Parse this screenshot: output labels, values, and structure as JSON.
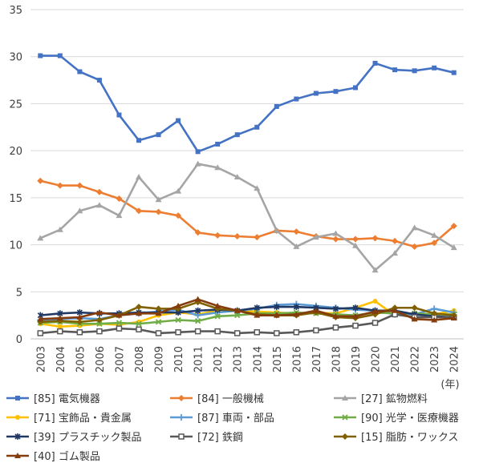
{
  "chart_data": {
    "type": "line",
    "x": [
      "2003",
      "2004",
      "2005",
      "2006",
      "2007",
      "2008",
      "2009",
      "2010",
      "2011",
      "2012",
      "2013",
      "2014",
      "2015",
      "2016",
      "2017",
      "2018",
      "2019",
      "2020",
      "2021",
      "2022",
      "2023",
      "2024"
    ],
    "x_unit": "(年)",
    "ylim": [
      0,
      35
    ],
    "yticks": [
      0,
      5,
      10,
      15,
      20,
      25,
      30,
      35
    ],
    "grid": "horizontal",
    "legend_position": "bottom",
    "series": [
      {
        "name": "[85] 電気機器",
        "color": "#4472C4",
        "marker": "square",
        "values": [
          30.1,
          30.1,
          28.4,
          27.5,
          23.8,
          21.1,
          21.7,
          23.2,
          19.9,
          20.7,
          21.7,
          22.5,
          24.7,
          25.5,
          26.1,
          26.3,
          26.7,
          29.3,
          28.6,
          28.5,
          28.8,
          28.3
        ]
      },
      {
        "name": "[84] 一般機械",
        "color": "#ED7D31",
        "marker": "diamond",
        "values": [
          16.8,
          16.3,
          16.3,
          15.6,
          14.9,
          13.6,
          13.5,
          13.1,
          11.3,
          11.0,
          10.9,
          10.8,
          11.5,
          11.4,
          10.9,
          10.6,
          10.6,
          10.7,
          10.4,
          9.8,
          10.2,
          12.0
        ]
      },
      {
        "name": "[27] 鉱物燃料",
        "color": "#A5A5A5",
        "marker": "triangle",
        "values": [
          10.7,
          11.6,
          13.6,
          14.2,
          13.1,
          17.2,
          14.8,
          15.7,
          18.6,
          18.2,
          17.2,
          16.0,
          11.5,
          9.8,
          10.8,
          11.2,
          9.9,
          7.3,
          9.1,
          11.8,
          11.0,
          9.7
        ]
      },
      {
        "name": "[71] 宝飾品・貴金属",
        "color": "#FFC000",
        "marker": "circle",
        "values": [
          1.6,
          1.3,
          1.4,
          1.6,
          1.5,
          1.8,
          2.5,
          2.8,
          2.6,
          3.0,
          3.0,
          2.9,
          2.8,
          2.7,
          2.8,
          2.7,
          3.3,
          4.0,
          2.5,
          2.7,
          2.6,
          3.0
        ]
      },
      {
        "name": "[87] 車両・部品",
        "color": "#5B9BD5",
        "marker": "plus",
        "values": [
          2.0,
          2.1,
          2.2,
          2.1,
          2.5,
          2.7,
          2.9,
          3.1,
          2.5,
          2.8,
          3.0,
          3.2,
          3.6,
          3.7,
          3.5,
          3.3,
          3.1,
          3.0,
          2.6,
          2.6,
          3.2,
          2.8
        ]
      },
      {
        "name": "[90] 光学・医療機器",
        "color": "#70AD47",
        "marker": "x",
        "values": [
          1.7,
          1.8,
          1.6,
          1.6,
          1.7,
          1.6,
          1.8,
          2.0,
          1.9,
          2.4,
          2.5,
          2.7,
          2.7,
          2.8,
          2.7,
          2.6,
          2.5,
          2.8,
          2.7,
          2.7,
          2.6,
          2.6
        ]
      },
      {
        "name": "[39] プラスチック製品",
        "color": "#1F3864",
        "marker": "asterisk",
        "values": [
          2.5,
          2.7,
          2.8,
          2.7,
          2.7,
          2.8,
          2.8,
          2.8,
          3.0,
          3.1,
          3.0,
          3.3,
          3.4,
          3.4,
          3.3,
          3.2,
          3.3,
          3.0,
          3.0,
          2.6,
          2.4,
          2.3
        ]
      },
      {
        "name": "[72] 鉄鋼",
        "color": "#595959",
        "marker": "open-square",
        "values": [
          0.6,
          0.8,
          0.7,
          0.8,
          1.1,
          1.0,
          0.6,
          0.7,
          0.8,
          0.8,
          0.6,
          0.7,
          0.6,
          0.7,
          0.9,
          1.2,
          1.4,
          1.7,
          2.6,
          2.3,
          2.3,
          2.3
        ]
      },
      {
        "name": "[15] 脂肪・ワックス",
        "color": "#806000",
        "marker": "diamond",
        "values": [
          1.8,
          1.9,
          1.8,
          2.0,
          2.5,
          3.4,
          3.2,
          3.2,
          3.9,
          3.2,
          3.0,
          2.6,
          2.5,
          2.5,
          2.8,
          2.3,
          2.2,
          2.6,
          3.3,
          3.3,
          2.7,
          2.5
        ]
      },
      {
        "name": "[40] ゴム製品",
        "color": "#843C0C",
        "marker": "triangle",
        "values": [
          2.1,
          2.2,
          2.3,
          2.8,
          2.5,
          2.7,
          2.7,
          3.5,
          4.2,
          3.5,
          3.0,
          2.5,
          2.5,
          2.6,
          3.0,
          2.4,
          2.4,
          2.9,
          3.0,
          2.1,
          2.0,
          2.2
        ]
      }
    ]
  }
}
